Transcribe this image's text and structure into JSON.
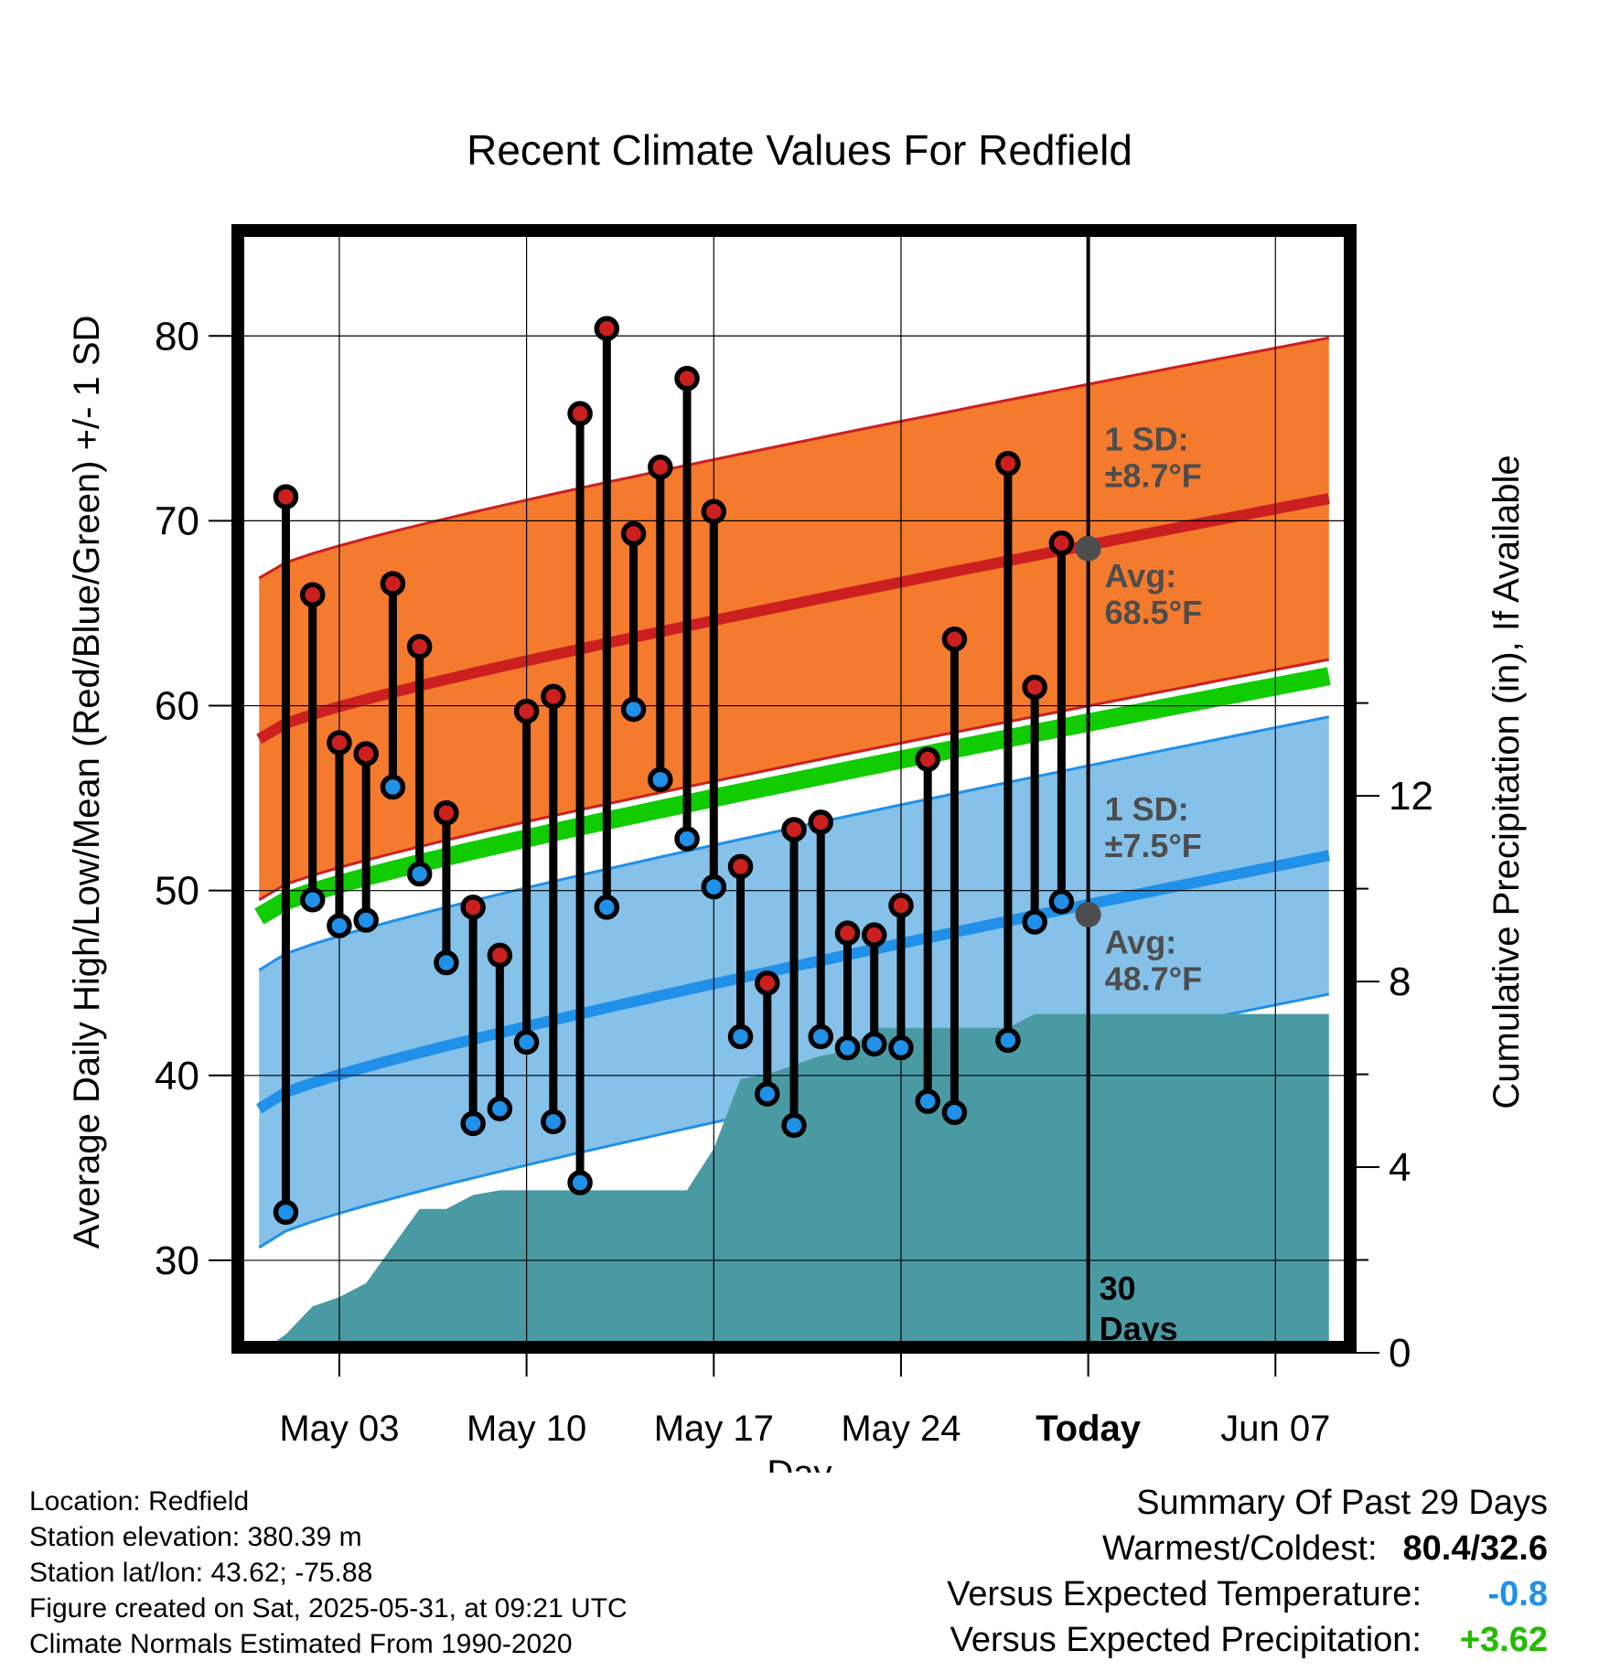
{
  "chart_data": {
    "type": "line",
    "title": "Recent Climate Values For Redfield",
    "xlabel": "Day",
    "ylabel": "Average Daily High/Low/Mean (Red/Blue/Green) +/- 1 SD",
    "y2label": "Cumulative Precipitation (in), If Available",
    "ylim": [
      25,
      86
    ],
    "y2lim": [
      0,
      24.3
    ],
    "yticks": [
      30,
      40,
      50,
      60,
      70,
      80
    ],
    "y2ticks": [
      0,
      4,
      8,
      12
    ],
    "xlim": [
      "2025-04-29",
      "2025-06-10"
    ],
    "xticks": [
      {
        "date": "2025-05-03",
        "label": "May 03"
      },
      {
        "date": "2025-05-10",
        "label": "May 10"
      },
      {
        "date": "2025-05-17",
        "label": "May 17"
      },
      {
        "date": "2025-05-24",
        "label": "May 24"
      },
      {
        "date": "2025-05-31",
        "label": "Today"
      },
      {
        "date": "2025-06-07",
        "label": "Jun 07"
      }
    ],
    "today": "2025-05-31",
    "today_label": [
      "30",
      "Days"
    ],
    "grid": true,
    "normals": {
      "start_date": "2025-04-30",
      "end_date": "2025-06-09",
      "high_mean": [
        58.2,
        71.2
      ],
      "high_sd": 8.7,
      "low_mean": [
        38.2,
        51.9
      ],
      "low_sd": 7.5,
      "mean": [
        48.6,
        61.6
      ]
    },
    "annotations": {
      "high_sd": [
        "1 SD:",
        "±8.7°F"
      ],
      "high_avg": [
        "Avg:",
        "68.5°F"
      ],
      "low_sd": [
        "1 SD:",
        "±7.5°F"
      ],
      "low_avg": [
        "Avg:",
        "48.7°F"
      ],
      "high_avg_value": 68.5,
      "low_avg_value": 48.7
    },
    "series": [
      {
        "name": "High",
        "color": "#cc2020",
        "x": [
          "2025-05-01",
          "2025-05-02",
          "2025-05-03",
          "2025-05-04",
          "2025-05-05",
          "2025-05-06",
          "2025-05-07",
          "2025-05-08",
          "2025-05-09",
          "2025-05-10",
          "2025-05-11",
          "2025-05-12",
          "2025-05-13",
          "2025-05-14",
          "2025-05-15",
          "2025-05-16",
          "2025-05-17",
          "2025-05-18",
          "2025-05-19",
          "2025-05-20",
          "2025-05-21",
          "2025-05-22",
          "2025-05-23",
          "2025-05-24",
          "2025-05-25",
          "2025-05-26",
          "2025-05-28",
          "2025-05-29",
          "2025-05-30"
        ],
        "values": [
          71.3,
          66.0,
          58.0,
          57.4,
          66.6,
          63.2,
          54.2,
          49.1,
          46.5,
          59.7,
          60.5,
          75.8,
          80.4,
          69.3,
          72.9,
          77.7,
          70.5,
          51.3,
          45.0,
          53.3,
          53.7,
          47.7,
          47.6,
          49.2,
          57.1,
          63.6,
          73.1,
          61.0,
          68.8
        ]
      },
      {
        "name": "Low",
        "color": "#2090e8",
        "x": [
          "2025-05-01",
          "2025-05-02",
          "2025-05-03",
          "2025-05-04",
          "2025-05-05",
          "2025-05-06",
          "2025-05-07",
          "2025-05-08",
          "2025-05-09",
          "2025-05-10",
          "2025-05-11",
          "2025-05-12",
          "2025-05-13",
          "2025-05-14",
          "2025-05-15",
          "2025-05-16",
          "2025-05-17",
          "2025-05-18",
          "2025-05-19",
          "2025-05-20",
          "2025-05-21",
          "2025-05-22",
          "2025-05-23",
          "2025-05-24",
          "2025-05-25",
          "2025-05-26",
          "2025-05-28",
          "2025-05-29",
          "2025-05-30"
        ],
        "values": [
          32.6,
          49.5,
          48.1,
          48.4,
          55.6,
          50.9,
          46.1,
          37.4,
          38.2,
          41.8,
          37.5,
          34.2,
          49.1,
          59.8,
          56.0,
          52.8,
          50.2,
          42.1,
          39.0,
          37.3,
          42.1,
          41.5,
          41.7,
          41.5,
          38.6,
          38.0,
          41.9,
          48.3,
          49.4
        ]
      }
    ],
    "precipitation": {
      "x": [
        "2025-04-30",
        "2025-05-01",
        "2025-05-02",
        "2025-05-03",
        "2025-05-04",
        "2025-05-05",
        "2025-05-06",
        "2025-05-07",
        "2025-05-08",
        "2025-05-09",
        "2025-05-10",
        "2025-05-11",
        "2025-05-12",
        "2025-05-13",
        "2025-05-14",
        "2025-05-15",
        "2025-05-16",
        "2025-05-17",
        "2025-05-18",
        "2025-05-19",
        "2025-05-20",
        "2025-05-21",
        "2025-05-22",
        "2025-05-23",
        "2025-05-24",
        "2025-05-25",
        "2025-05-26",
        "2025-05-27",
        "2025-05-28",
        "2025-05-29",
        "2025-05-30",
        "2025-05-31",
        "2025-06-09"
      ],
      "values": [
        0.0,
        0.4,
        1.0,
        1.2,
        1.5,
        2.3,
        3.1,
        3.1,
        3.4,
        3.5,
        3.5,
        3.5,
        3.5,
        3.5,
        3.5,
        3.5,
        3.5,
        4.4,
        5.9,
        6.0,
        6.2,
        6.4,
        6.5,
        7.0,
        7.0,
        7.0,
        7.0,
        7.0,
        7.0,
        7.3,
        7.3,
        7.3,
        7.3
      ],
      "color": "#4a9aa4"
    }
  },
  "info": {
    "location": "Location: Redfield",
    "elevation": "Station elevation: 380.39 m",
    "latlon": "Station lat/lon: 43.62; -75.88",
    "created": "Figure created on Sat, 2025-05-31, at 09:21 UTC",
    "normals": "Climate Normals Estimated From 1990-2020"
  },
  "summary": {
    "title": "Summary Of Past 29 Days",
    "warm_cold_label": "Warmest/Coldest:",
    "warm_cold_value": "80.4/32.6",
    "temp_label": "Versus Expected Temperature:",
    "temp_value": "-0.8",
    "temp_color": "#2090e8",
    "precip_label": "Versus Expected Precipitation:",
    "precip_value": "+3.62",
    "precip_color": "#22bb00"
  }
}
